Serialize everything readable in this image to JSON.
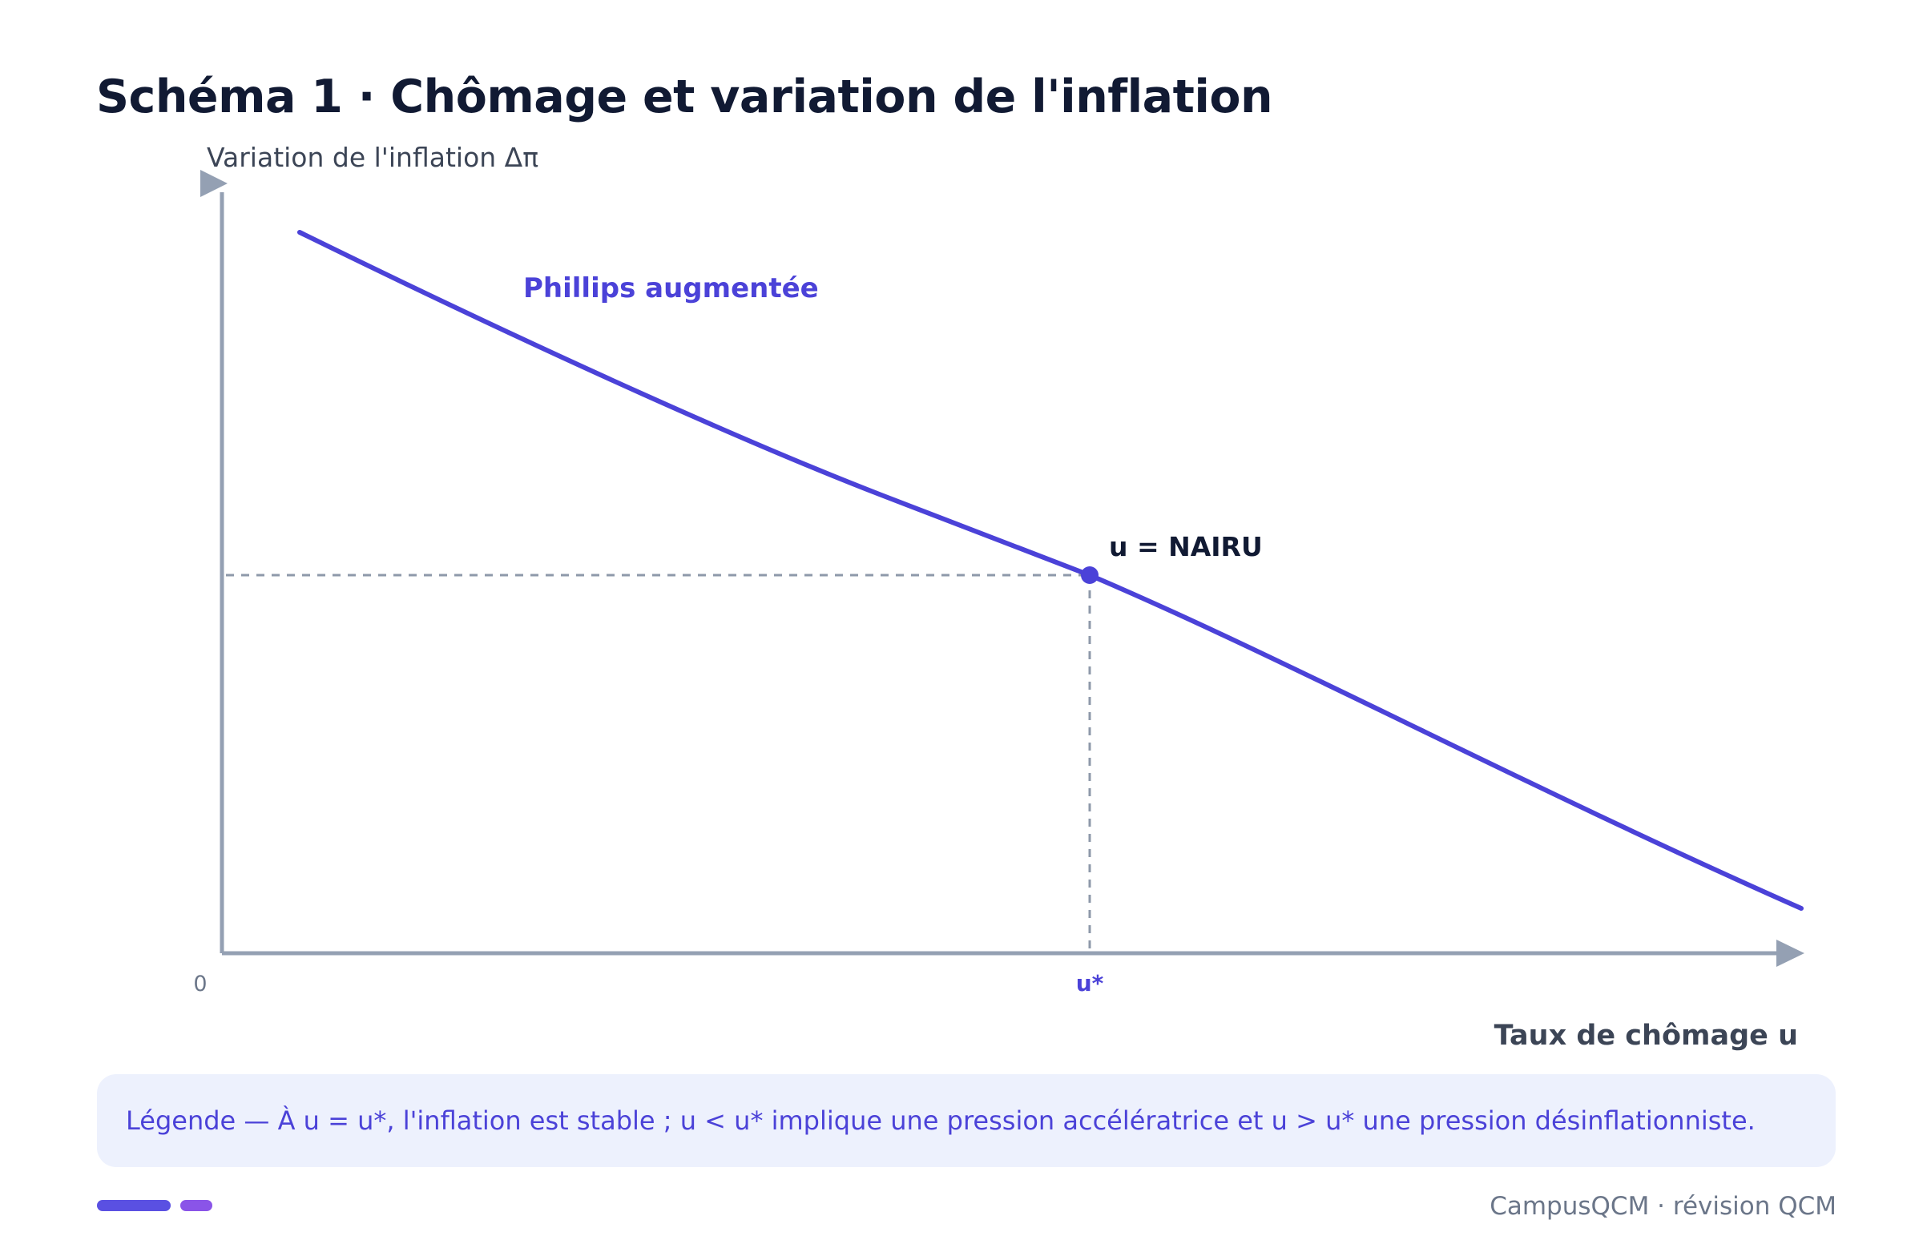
{
  "title": "Schéma 1 · Chômage et variation de l'inflation",
  "diagram": {
    "y_axis_label": "Variation de l'inflation Δπ",
    "x_axis_label": "Taux de chômage u",
    "origin_label": "0",
    "curve_label": "Phillips augmentée",
    "point_label": "u = NAIRU",
    "x_tick_label": "u*"
  },
  "legend": {
    "text": "Légende — À u = u*, l'inflation est stable ; u < u* implique une pression accélératrice et u > u* une pression désinflationniste."
  },
  "footer": {
    "brand": "CampusQCM · révision QCM"
  },
  "colors": {
    "curve": "#4b42d8",
    "axis": "#94a0b3",
    "title": "#111a33",
    "legend_bg": "#edf1fd",
    "legend_text": "#4b42d8"
  }
}
